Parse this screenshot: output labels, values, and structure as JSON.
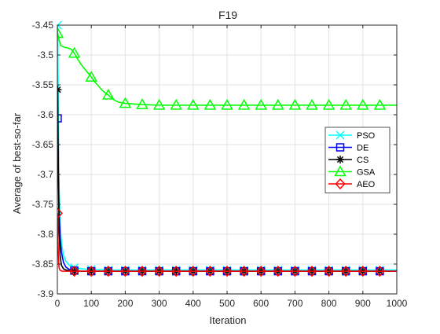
{
  "chart_data": {
    "type": "line",
    "title": "F19",
    "xlabel": "Iteration",
    "ylabel": "Average of best-so-far",
    "xlim": [
      0,
      1000
    ],
    "ylim": [
      -3.9,
      -3.45
    ],
    "xticks": [
      0,
      100,
      200,
      300,
      400,
      500,
      600,
      700,
      800,
      900,
      1000
    ],
    "xtick_labels": [
      "0",
      "100",
      "200",
      "300",
      "400",
      "500",
      "600",
      "700",
      "800",
      "900",
      "1000"
    ],
    "yticks": [
      -3.45,
      -3.5,
      -3.55,
      -3.6,
      -3.65,
      -3.7,
      -3.75,
      -3.8,
      -3.85,
      -3.9
    ],
    "ytick_labels": [
      "-3.45",
      "-3.5",
      "-3.55",
      "-3.6",
      "-3.65",
      "-3.7",
      "-3.75",
      "-3.8",
      "-3.85",
      "-3.9"
    ],
    "grid": true,
    "legend_position": "right",
    "series": [
      {
        "name": "PSO",
        "color": "#00ffff",
        "marker": "x",
        "x": [
          1,
          3,
          5,
          8,
          12,
          18,
          25,
          35,
          50,
          70,
          100,
          150,
          200,
          300,
          400,
          500,
          600,
          700,
          800,
          900,
          1000
        ],
        "y": [
          -3.45,
          -3.6,
          -3.72,
          -3.78,
          -3.815,
          -3.835,
          -3.845,
          -3.852,
          -3.856,
          -3.858,
          -3.859,
          -3.86,
          -3.86,
          -3.86,
          -3.86,
          -3.86,
          -3.86,
          -3.86,
          -3.86,
          -3.86,
          -3.86
        ],
        "marker_x": [
          1,
          50,
          100,
          150,
          200,
          250,
          300,
          350,
          400,
          450,
          500,
          550,
          600,
          650,
          700,
          750,
          800,
          850,
          900,
          950
        ]
      },
      {
        "name": "DE",
        "color": "#0000ff",
        "marker": "square",
        "x": [
          1,
          3,
          5,
          8,
          12,
          18,
          25,
          35,
          50,
          70,
          100,
          200,
          400,
          600,
          800,
          1000
        ],
        "y": [
          -3.606,
          -3.7,
          -3.76,
          -3.805,
          -3.83,
          -3.847,
          -3.855,
          -3.859,
          -3.861,
          -3.862,
          -3.862,
          -3.862,
          -3.862,
          -3.862,
          -3.862,
          -3.862
        ],
        "marker_x": [
          1,
          50,
          100,
          150,
          200,
          250,
          300,
          350,
          400,
          450,
          500,
          550,
          600,
          650,
          700,
          750,
          800,
          850,
          900,
          950
        ]
      },
      {
        "name": "CS",
        "color": "#000000",
        "marker": "star",
        "x": [
          1,
          3,
          5,
          8,
          12,
          18,
          25,
          35,
          50,
          70,
          100,
          200,
          400,
          600,
          800,
          1000
        ],
        "y": [
          -3.558,
          -3.7,
          -3.79,
          -3.835,
          -3.852,
          -3.858,
          -3.86,
          -3.861,
          -3.862,
          -3.862,
          -3.862,
          -3.862,
          -3.862,
          -3.862,
          -3.862,
          -3.862
        ],
        "marker_x": [
          1,
          50,
          100,
          150,
          200,
          250,
          300,
          350,
          400,
          450,
          500,
          550,
          600,
          650,
          700,
          750,
          800,
          850,
          900,
          950
        ]
      },
      {
        "name": "GSA",
        "color": "#00ff00",
        "marker": "triangle",
        "x": [
          1,
          5,
          10,
          20,
          30,
          40,
          50,
          60,
          70,
          80,
          90,
          100,
          110,
          120,
          130,
          140,
          150,
          160,
          170,
          180,
          190,
          200,
          250,
          300,
          400,
          500,
          600,
          700,
          800,
          900,
          1000
        ],
        "y": [
          -3.464,
          -3.475,
          -3.484,
          -3.487,
          -3.488,
          -3.49,
          -3.497,
          -3.507,
          -3.516,
          -3.523,
          -3.53,
          -3.537,
          -3.545,
          -3.551,
          -3.558,
          -3.563,
          -3.567,
          -3.572,
          -3.576,
          -3.579,
          -3.58,
          -3.581,
          -3.583,
          -3.584,
          -3.584,
          -3.584,
          -3.584,
          -3.584,
          -3.584,
          -3.584,
          -3.584
        ],
        "marker_x": [
          1,
          50,
          100,
          150,
          200,
          250,
          300,
          350,
          400,
          450,
          500,
          550,
          600,
          650,
          700,
          750,
          800,
          850,
          900,
          950
        ]
      },
      {
        "name": "AEO",
        "color": "#ff0000",
        "marker": "diamond",
        "x": [
          1,
          2,
          3,
          4,
          5,
          6,
          8,
          10,
          15,
          20,
          30,
          50,
          100,
          200,
          400,
          600,
          800,
          1000
        ],
        "y": [
          -3.765,
          -3.81,
          -3.835,
          -3.848,
          -3.855,
          -3.858,
          -3.86,
          -3.861,
          -3.862,
          -3.862,
          -3.862,
          -3.862,
          -3.862,
          -3.862,
          -3.862,
          -3.862,
          -3.862,
          -3.862
        ],
        "marker_x": [
          1,
          50,
          100,
          150,
          200,
          250,
          300,
          350,
          400,
          450,
          500,
          550,
          600,
          650,
          700,
          750,
          800,
          850,
          900,
          950
        ]
      }
    ]
  }
}
